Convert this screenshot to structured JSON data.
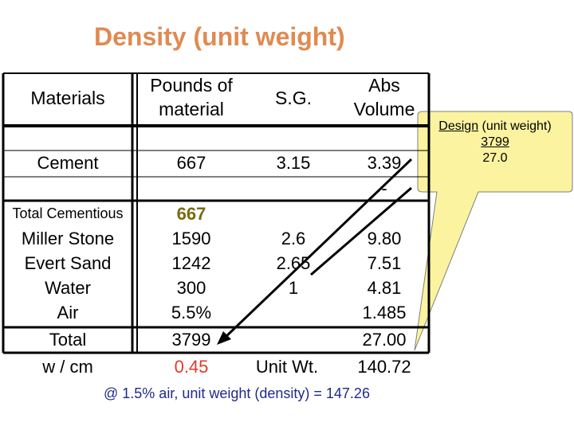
{
  "title": "Density (unit weight)",
  "colors": {
    "title": "#e08a52",
    "highlight_cementitious": "#7a6a10",
    "highlight_wcm": "#e23a2a",
    "callout_fill": "#fbf3a0",
    "footnote": "#1f2a8a"
  },
  "table": {
    "headers": {
      "materials": "Materials",
      "pounds_line1": "Pounds of",
      "pounds_line2": "material",
      "sg": "S.G.",
      "abs_line1": "Abs",
      "abs_line2": "Volume"
    },
    "rows": [
      {
        "material": "Cement",
        "pounds": "667",
        "sg": "3.15",
        "abs": "3.39"
      },
      {
        "material": "",
        "pounds": "",
        "sg": "",
        "abs": "-"
      },
      {
        "material": "Total Cementious",
        "pounds": "667",
        "sg": "",
        "abs": ""
      },
      {
        "material": "Miller Stone",
        "pounds": "1590",
        "sg": "2.6",
        "abs": "9.80"
      },
      {
        "material": "Evert Sand",
        "pounds": "1242",
        "sg": "2.65",
        "abs": "7.51"
      },
      {
        "material": "Water",
        "pounds": "300",
        "sg": "1",
        "abs": "4.81"
      },
      {
        "material": "Air",
        "pounds": "5.5%",
        "sg": "",
        "abs": "1.485"
      },
      {
        "material": "Total",
        "pounds": "3799",
        "sg": "",
        "abs": "27.00"
      }
    ],
    "footer_row": {
      "label": "w / cm",
      "value": "0.45",
      "unit_label": "Unit Wt.",
      "unit_value": "140.72"
    }
  },
  "callout": {
    "line1_underlined": "Design",
    "line1_rest": " (unit weight)",
    "line2": "3799",
    "line3": "27.0"
  },
  "footnote": "@ 1.5% air,   unit weight (density) = 147.26"
}
